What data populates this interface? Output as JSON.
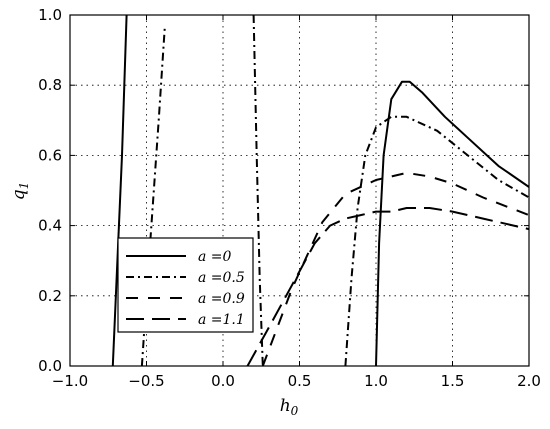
{
  "chart_data": {
    "type": "line",
    "title": "",
    "xlabel": "h0",
    "ylabel": "q1",
    "xlim": [
      -1.0,
      2.0
    ],
    "ylim": [
      0.0,
      1.0
    ],
    "xticks": [
      -1.0,
      -0.5,
      0.0,
      0.5,
      1.0,
      1.5,
      2.0
    ],
    "xtick_labels": [
      "−1.0",
      "−0.5",
      "0.0",
      "0.5",
      "1.0",
      "1.5",
      "2.0"
    ],
    "yticks": [
      0.0,
      0.2,
      0.4,
      0.6,
      0.8,
      1.0
    ],
    "ytick_labels": [
      "0.0",
      "0.2",
      "0.4",
      "0.6",
      "0.8",
      "1.0"
    ],
    "grid": true,
    "legend_position": "bottom-left",
    "series": [
      {
        "name": "a = 0",
        "style": "solid",
        "segments": [
          [
            [
              -0.72,
              0.0
            ],
            [
              -0.69,
              0.3
            ],
            [
              -0.66,
              0.6
            ],
            [
              -0.63,
              1.0
            ]
          ],
          [
            [
              1.0,
              0.0
            ],
            [
              1.02,
              0.35
            ],
            [
              1.05,
              0.6
            ],
            [
              1.1,
              0.76
            ],
            [
              1.17,
              0.81
            ],
            [
              1.22,
              0.81
            ],
            [
              1.3,
              0.78
            ],
            [
              1.45,
              0.71
            ],
            [
              1.6,
              0.65
            ],
            [
              1.8,
              0.57
            ],
            [
              2.0,
              0.51
            ]
          ]
        ]
      },
      {
        "name": "a = 0.5",
        "style": "dashdot",
        "segments": [
          [
            [
              -0.53,
              0.0
            ],
            [
              -0.5,
              0.2
            ],
            [
              -0.46,
              0.45
            ],
            [
              -0.42,
              0.7
            ],
            [
              -0.38,
              0.97
            ]
          ],
          [
            [
              0.2,
              1.0
            ],
            [
              0.22,
              0.6
            ],
            [
              0.24,
              0.25
            ],
            [
              0.26,
              0.0
            ]
          ],
          [
            [
              0.8,
              0.0
            ],
            [
              0.84,
              0.25
            ],
            [
              0.88,
              0.45
            ],
            [
              0.93,
              0.6
            ],
            [
              1.0,
              0.68
            ],
            [
              1.1,
              0.71
            ],
            [
              1.2,
              0.71
            ],
            [
              1.4,
              0.67
            ],
            [
              1.6,
              0.6
            ],
            [
              1.8,
              0.53
            ],
            [
              2.0,
              0.48
            ]
          ]
        ]
      },
      {
        "name": "a = 0.9",
        "style": "dashed",
        "segments": [
          [
            [
              0.26,
              0.0
            ],
            [
              0.45,
              0.22
            ],
            [
              0.65,
              0.41
            ],
            [
              0.8,
              0.49
            ],
            [
              1.0,
              0.53
            ],
            [
              1.1,
              0.54
            ],
            [
              1.2,
              0.55
            ],
            [
              1.35,
              0.54
            ],
            [
              1.5,
              0.52
            ],
            [
              1.7,
              0.48
            ],
            [
              2.0,
              0.43
            ]
          ]
        ]
      },
      {
        "name": "a = 1.1",
        "style": "dashed-long",
        "segments": [
          [
            [
              0.16,
              0.0
            ],
            [
              0.3,
              0.11
            ],
            [
              0.45,
              0.23
            ],
            [
              0.6,
              0.35
            ],
            [
              0.7,
              0.4
            ],
            [
              0.8,
              0.42
            ],
            [
              0.9,
              0.43
            ],
            [
              1.0,
              0.44
            ],
            [
              1.1,
              0.44
            ],
            [
              1.2,
              0.45
            ],
            [
              1.35,
              0.45
            ],
            [
              1.5,
              0.44
            ],
            [
              1.7,
              0.42
            ],
            [
              2.0,
              0.39
            ]
          ]
        ]
      }
    ]
  },
  "legend": {
    "items": [
      {
        "prefix": "a",
        "value": "=0"
      },
      {
        "prefix": "a",
        "value": "=0.5"
      },
      {
        "prefix": "a",
        "value": "=0.9"
      },
      {
        "prefix": "a",
        "value": "=1.1"
      }
    ]
  }
}
